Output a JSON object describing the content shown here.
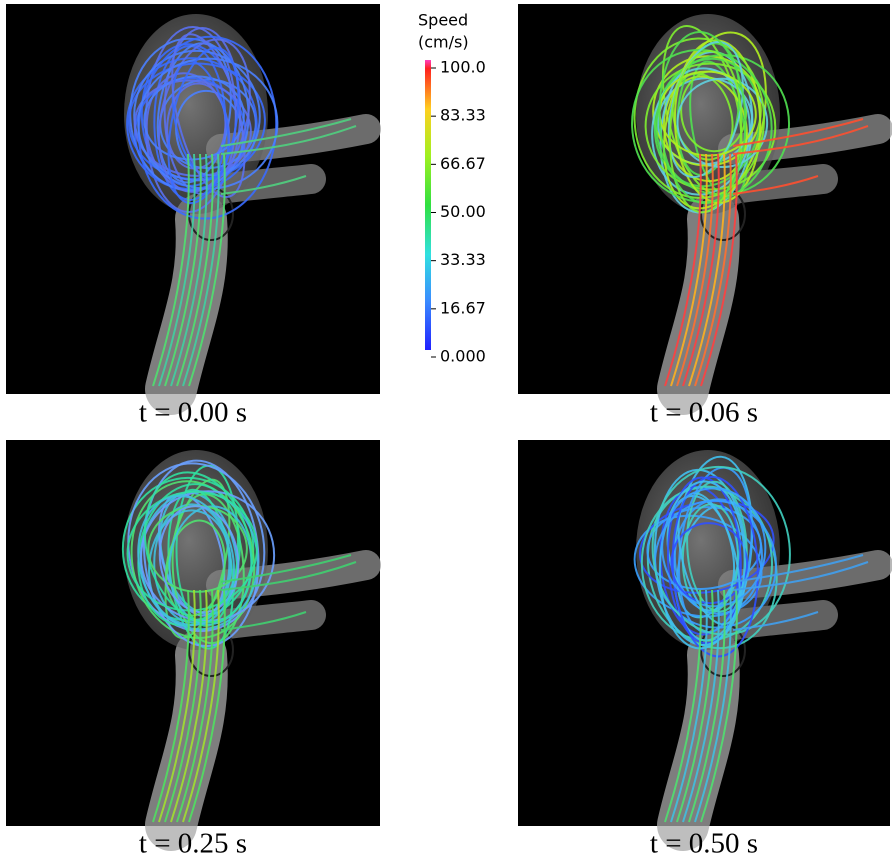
{
  "colorbar": {
    "title": "Speed",
    "unit": "(cm/s)",
    "ticks": [
      "100.0",
      "83.33",
      "66.67",
      "50.00",
      "33.33",
      "16.67",
      "0.000"
    ]
  },
  "panels": [
    {
      "caption": "t = 0.00 s"
    },
    {
      "caption": "t = 0.06 s"
    },
    {
      "caption": "t = 0.25 s"
    },
    {
      "caption": "t = 0.50 s"
    }
  ]
}
